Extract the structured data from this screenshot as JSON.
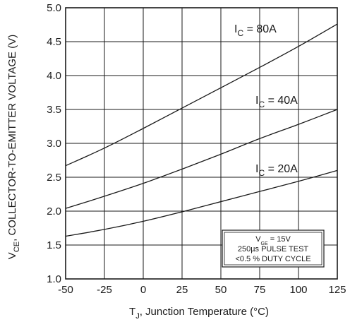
{
  "chart_data": {
    "type": "line",
    "xlim": [
      -50,
      125
    ],
    "ylim": [
      1.0,
      5.0
    ],
    "xticks": [
      "-50",
      "-25",
      "0",
      "25",
      "50",
      "75",
      "100",
      "125"
    ],
    "yticks": [
      "1.0",
      "1.5",
      "2.0",
      "2.5",
      "3.0",
      "3.5",
      "4.0",
      "4.5",
      "5.0"
    ],
    "xlabel": {
      "main": "T",
      "sub": "J",
      "rest": ", Junction Temperature (°C)"
    },
    "ylabel": {
      "main": "V",
      "sub": "CE",
      "rest": ", COLLECTOR-TO-EMITTER VOLTAGE (V)"
    },
    "grid": true,
    "series": [
      {
        "label_main": "I",
        "label_sub": "C",
        "label_rest": " = 80A",
        "x": [
          -50,
          -25,
          0,
          25,
          50,
          75,
          100,
          125
        ],
        "y": [
          2.67,
          2.93,
          3.22,
          3.52,
          3.82,
          4.12,
          4.43,
          4.76
        ]
      },
      {
        "label_main": "I",
        "label_sub": "C",
        "label_rest": " = 40A",
        "x": [
          -50,
          -25,
          0,
          25,
          50,
          75,
          100,
          125
        ],
        "y": [
          2.04,
          2.22,
          2.41,
          2.62,
          2.84,
          3.07,
          3.28,
          3.5
        ]
      },
      {
        "label_main": "I",
        "label_sub": "C",
        "label_rest": " = 20A",
        "x": [
          -50,
          -25,
          0,
          25,
          50,
          75,
          100,
          125
        ],
        "y": [
          1.63,
          1.73,
          1.85,
          1.99,
          2.14,
          2.29,
          2.44,
          2.6
        ]
      }
    ],
    "annotation": {
      "lines": [
        {
          "main": "V",
          "sub": "GE",
          "rest": " = 15V"
        },
        {
          "main": "250µs PULSE TEST",
          "sub": "",
          "rest": ""
        },
        {
          "main": "<0.5 % DUTY CYCLE",
          "sub": "",
          "rest": ""
        }
      ]
    },
    "colors": {
      "line": "#1a1a1a",
      "grid": "#1a1a1a",
      "background": "#ffffff"
    }
  }
}
